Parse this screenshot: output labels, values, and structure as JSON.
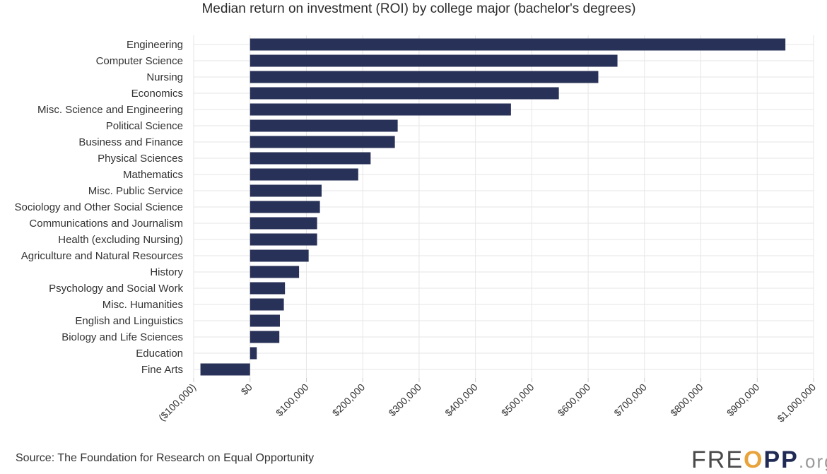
{
  "title": "Median return on investment (ROI) by college major (bachelor's degrees)",
  "source": "Source: The Foundation for Research on Equal Opportunity",
  "logo": {
    "text": "FREOPP",
    "suffix": ".org"
  },
  "colors": {
    "bar": "#283157",
    "grid": "#e6e6e6",
    "axis": "#cccccc",
    "text": "#333333"
  },
  "chart_data": {
    "type": "bar",
    "orientation": "horizontal",
    "title": "Median return on investment (ROI) by college major (bachelor's degrees)",
    "xlabel": "",
    "ylabel": "",
    "xlim": [
      -100000,
      1000000
    ],
    "grid": true,
    "categories": [
      "Engineering",
      "Computer Science",
      "Nursing",
      "Economics",
      "Misc. Science and Engineering",
      "Political Science",
      "Business and Finance",
      "Physical Sciences",
      "Mathematics",
      "Misc. Public Service",
      "Sociology and Other Social Science",
      "Communications and Journalism",
      "Health (excluding Nursing)",
      "Agriculture and Natural Resources",
      "History",
      "Psychology and Social Work",
      "Misc. Humanities",
      "English and Linguistics",
      "Biology and Life Sciences",
      "Education",
      "Fine Arts"
    ],
    "values": [
      950000,
      652000,
      618000,
      548000,
      463000,
      262000,
      257000,
      214000,
      192000,
      127000,
      124000,
      119000,
      119000,
      104000,
      87000,
      62000,
      60000,
      53000,
      52000,
      12000,
      -88000
    ],
    "x_ticks": [
      -100000,
      0,
      100000,
      200000,
      300000,
      400000,
      500000,
      600000,
      700000,
      800000,
      900000,
      1000000
    ],
    "x_tick_labels": [
      "($100,000)",
      "$0",
      "$100,000",
      "$200,000",
      "$300,000",
      "$400,000",
      "$500,000",
      "$600,000",
      "$700,000",
      "$800,000",
      "$900,000",
      "$1,000,000"
    ]
  }
}
